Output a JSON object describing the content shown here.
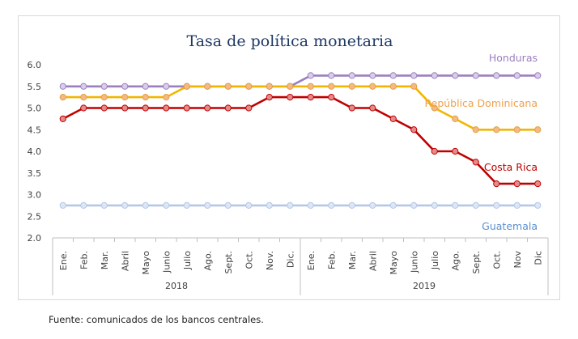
{
  "chart_data": {
    "type": "line",
    "title": "Tasa de política monetaria",
    "xlabel": "",
    "ylabel": "",
    "ylim": [
      2.0,
      6.0
    ],
    "y_ticks": [
      "2.0",
      "2.5",
      "3.0",
      "3.5",
      "4.0",
      "4.5",
      "5.0",
      "5.5",
      "6.0"
    ],
    "grid": false,
    "legend": "inline labels at right end of each series",
    "categories": [
      "Ene.",
      "Feb.",
      "Mar.",
      "Abril",
      "Mayo",
      "Junio",
      "Julio",
      "Ago.",
      "Sept.",
      "Oct.",
      "Nov.",
      "Dic.",
      "Ene.",
      "Feb.",
      "Mar.",
      "Abril",
      "Mayo",
      "Junio",
      "Julio",
      "Ago.",
      "Sept.",
      "Oct.",
      "Nov",
      "Dic"
    ],
    "year_groups": [
      {
        "label": "2018",
        "count": 12
      },
      {
        "label": "2019",
        "count": 12
      }
    ],
    "series": [
      {
        "name": "Honduras",
        "color": "#9b7fbf",
        "marker_fill": "#d9cdea",
        "values": [
          5.5,
          5.5,
          5.5,
          5.5,
          5.5,
          5.5,
          5.5,
          5.5,
          5.5,
          5.5,
          5.5,
          5.5,
          5.75,
          5.75,
          5.75,
          5.75,
          5.75,
          5.75,
          5.75,
          5.75,
          5.75,
          5.75,
          5.75,
          5.75
        ]
      },
      {
        "name": "República Dominicana",
        "color": "#f2b600",
        "label_color": "#f0a04b",
        "marker_fill": "#f7b886",
        "values": [
          5.25,
          5.25,
          5.25,
          5.25,
          5.25,
          5.25,
          5.5,
          5.5,
          5.5,
          5.5,
          5.5,
          5.5,
          5.5,
          5.5,
          5.5,
          5.5,
          5.5,
          5.5,
          5.0,
          4.75,
          4.5,
          4.5,
          4.5,
          4.5
        ]
      },
      {
        "name": "Costa Rica",
        "color": "#c00000",
        "marker_fill": "#e58a8a",
        "values": [
          4.75,
          5.0,
          5.0,
          5.0,
          5.0,
          5.0,
          5.0,
          5.0,
          5.0,
          5.0,
          5.25,
          5.25,
          5.25,
          5.25,
          5.0,
          5.0,
          4.75,
          4.5,
          4.0,
          4.0,
          3.75,
          3.25,
          3.25,
          3.25
        ]
      },
      {
        "name": "Guatemala",
        "color": "#b4c7e7",
        "label_color": "#5b8fd0",
        "marker_fill": "#dde6f4",
        "values": [
          2.75,
          2.75,
          2.75,
          2.75,
          2.75,
          2.75,
          2.75,
          2.75,
          2.75,
          2.75,
          2.75,
          2.75,
          2.75,
          2.75,
          2.75,
          2.75,
          2.75,
          2.75,
          2.75,
          2.75,
          2.75,
          2.75,
          2.75,
          2.75
        ]
      }
    ]
  },
  "source_note": "Fuente: comunicados de los bancos centrales."
}
